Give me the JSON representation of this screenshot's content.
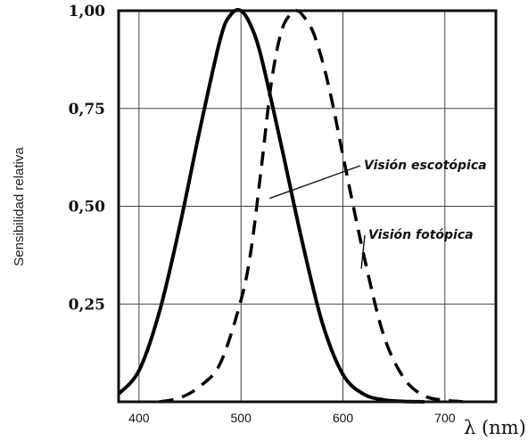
{
  "chart_data": {
    "type": "line",
    "title": "",
    "xlabel": "λ (nm)",
    "ylabel": "Sensibilidad relativa",
    "xlim": [
      380,
      750
    ],
    "ylim": [
      0,
      1.0
    ],
    "grid": true,
    "x_ticks": [
      {
        "value": 400,
        "label": "400"
      },
      {
        "value": 500,
        "label": "500"
      },
      {
        "value": 600,
        "label": "600"
      },
      {
        "value": 700,
        "label": "700"
      }
    ],
    "y_ticks": [
      {
        "value": 0.25,
        "label": "0,25"
      },
      {
        "value": 0.5,
        "label": "0,50"
      },
      {
        "value": 0.75,
        "label": "0,75"
      },
      {
        "value": 1.0,
        "label": "1,00"
      }
    ],
    "series": [
      {
        "name": "Visión escotópica",
        "style": "solid",
        "color": "#000000",
        "x": [
          380,
          400,
          420,
          440,
          460,
          480,
          490,
          500,
          510,
          520,
          540,
          560,
          580,
          600,
          620,
          640,
          660,
          680
        ],
        "y": [
          0.02,
          0.08,
          0.23,
          0.45,
          0.7,
          0.93,
          0.99,
          1.0,
          0.96,
          0.88,
          0.65,
          0.41,
          0.2,
          0.07,
          0.02,
          0.005,
          0.001,
          0.0
        ]
      },
      {
        "name": "Visión fotópica",
        "style": "dashed",
        "color": "#000000",
        "x": [
          420,
          440,
          460,
          480,
          500,
          510,
          520,
          530,
          540,
          550,
          555,
          560,
          570,
          580,
          590,
          600,
          620,
          640,
          660,
          680,
          700,
          720
        ],
        "y": [
          0.0,
          0.01,
          0.04,
          0.1,
          0.26,
          0.39,
          0.6,
          0.82,
          0.95,
          0.995,
          1.0,
          0.99,
          0.95,
          0.87,
          0.76,
          0.63,
          0.38,
          0.17,
          0.06,
          0.015,
          0.004,
          0.0
        ]
      }
    ],
    "annotations": [
      {
        "text": "Visión escotópica",
        "target_x": 528,
        "target_y": 0.52
      },
      {
        "text": "Visión fotópica",
        "target_x": 618,
        "target_y": 0.34
      }
    ]
  }
}
